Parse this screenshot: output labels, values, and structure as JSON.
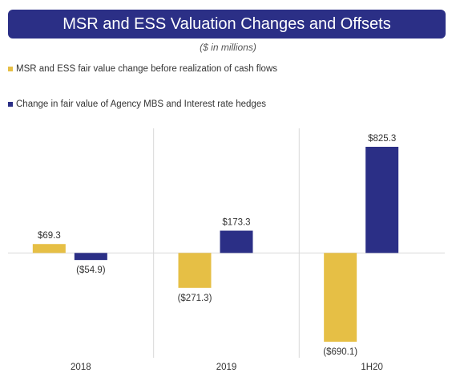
{
  "title": "MSR and ESS Valuation Changes and Offsets",
  "subtitle": "($ in millions)",
  "colors": {
    "title_bg": "#2b2f86",
    "series1": "#e6bf45",
    "series2": "#2b2f86"
  },
  "chart_data": {
    "type": "bar",
    "categories": [
      "2018",
      "2019",
      "1H20"
    ],
    "series": [
      {
        "name": "MSR and ESS fair value change before realization of cash flows",
        "values": [
          69.3,
          -271.3,
          -690.1
        ],
        "labels": [
          "$69.3",
          "($271.3)",
          "($690.1)"
        ]
      },
      {
        "name": "Change in fair value of Agency MBS and Interest rate hedges",
        "values": [
          -54.9,
          173.3,
          825.3
        ],
        "labels": [
          "($54.9)",
          "$173.3",
          "$825.3"
        ]
      }
    ],
    "ylim": [
      -690.1,
      825.3
    ],
    "grid": false,
    "legend": "top-left"
  }
}
